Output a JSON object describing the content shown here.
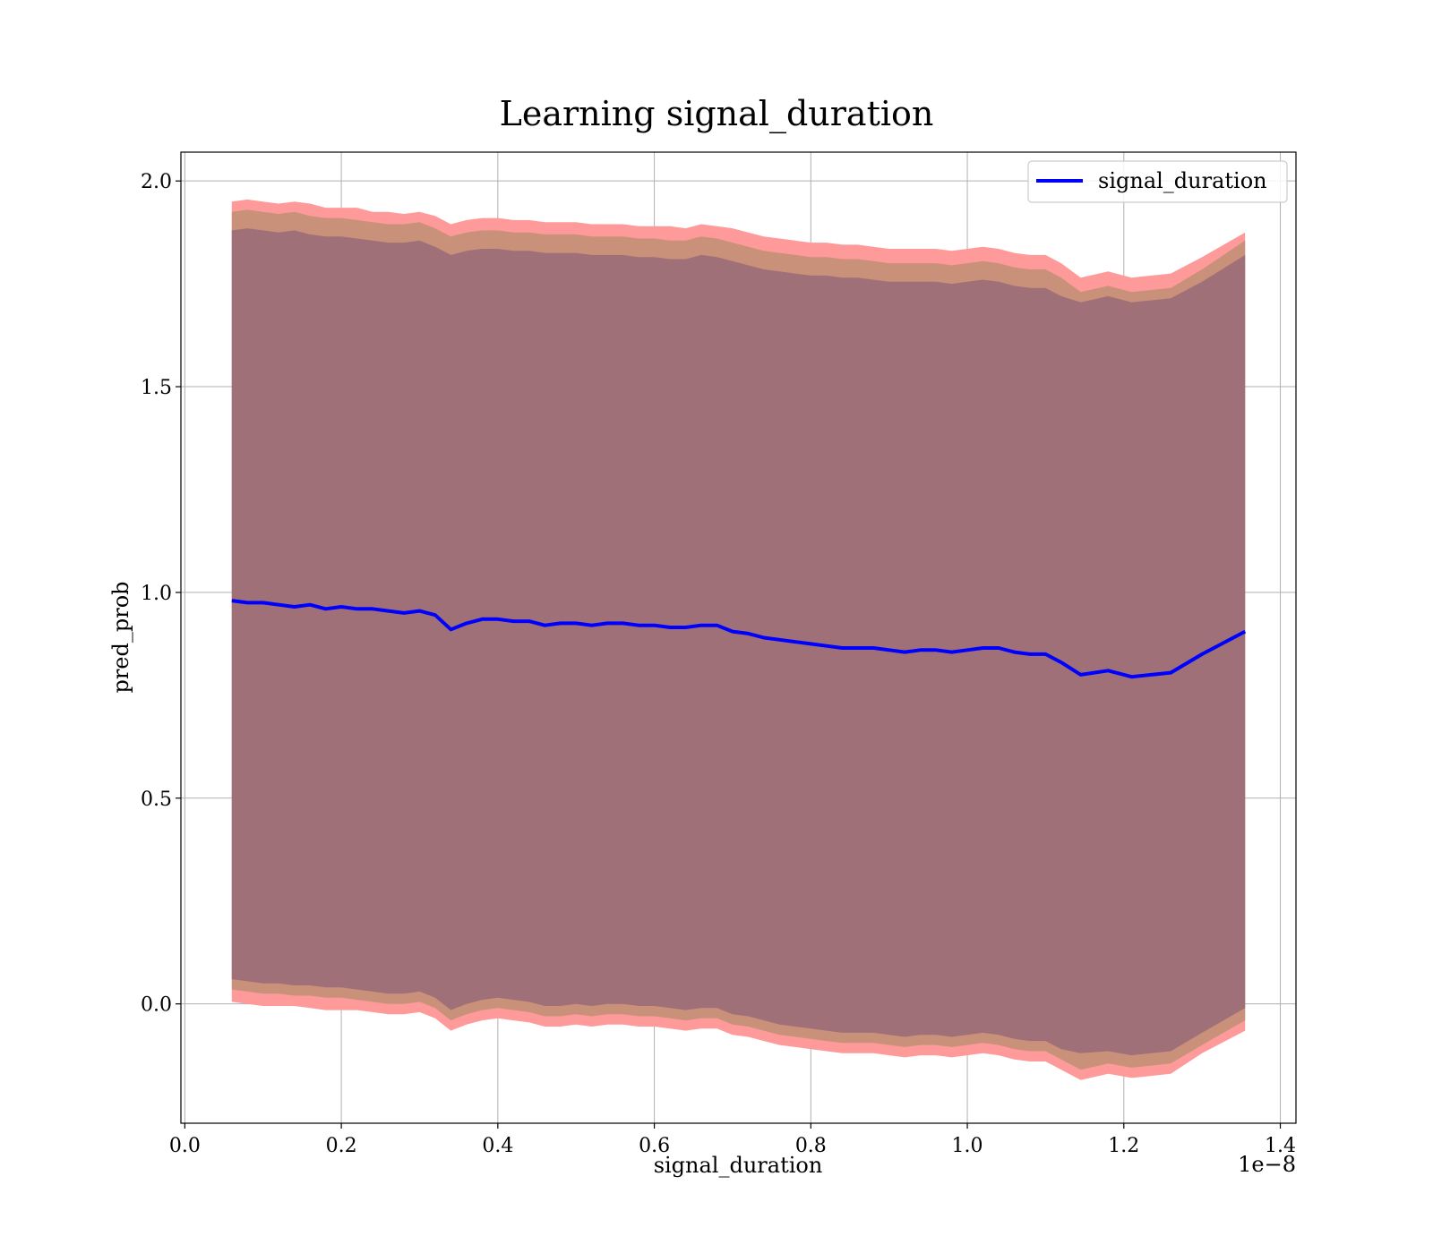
{
  "chart_data": {
    "type": "line",
    "title": "Learning signal_duration",
    "xlabel": "signal_duration",
    "ylabel": "pred_prob",
    "x_offset_label": "1e−8",
    "xlim": [
      -0.005,
      1.42
    ],
    "ylim": [
      -0.29,
      2.07
    ],
    "x_ticks": [
      0.0,
      0.2,
      0.4,
      0.6,
      0.8,
      1.0,
      1.2,
      1.4
    ],
    "x_tick_labels": [
      "0.0",
      "0.2",
      "0.4",
      "0.6",
      "0.8",
      "1.0",
      "1.2",
      "1.4"
    ],
    "y_ticks": [
      0.0,
      0.5,
      1.0,
      1.5,
      2.0
    ],
    "y_tick_labels": [
      "0.0",
      "0.5",
      "1.0",
      "1.5",
      "2.0"
    ],
    "grid": true,
    "legend_position": "top-right",
    "colors": {
      "line": "#0000ff",
      "band_outer": "#ff9a9a",
      "band_middle": "#c9917a",
      "band_inner": "#a07078",
      "grid": "#b0b0b0"
    },
    "series": [
      {
        "name": "signal_duration",
        "x": [
          0.06,
          0.08,
          0.1,
          0.12,
          0.14,
          0.16,
          0.18,
          0.2,
          0.22,
          0.24,
          0.26,
          0.28,
          0.3,
          0.32,
          0.34,
          0.36,
          0.38,
          0.4,
          0.42,
          0.44,
          0.46,
          0.48,
          0.5,
          0.52,
          0.54,
          0.56,
          0.58,
          0.6,
          0.62,
          0.64,
          0.66,
          0.68,
          0.7,
          0.72,
          0.74,
          0.76,
          0.78,
          0.8,
          0.82,
          0.84,
          0.86,
          0.88,
          0.9,
          0.92,
          0.94,
          0.96,
          0.98,
          1.0,
          1.02,
          1.04,
          1.06,
          1.08,
          1.1,
          1.12,
          1.145,
          1.18,
          1.21,
          1.26,
          1.3,
          1.355
        ],
        "y": [
          0.98,
          0.975,
          0.975,
          0.97,
          0.965,
          0.97,
          0.96,
          0.965,
          0.96,
          0.96,
          0.955,
          0.95,
          0.955,
          0.945,
          0.91,
          0.925,
          0.935,
          0.935,
          0.93,
          0.93,
          0.92,
          0.925,
          0.925,
          0.92,
          0.925,
          0.925,
          0.92,
          0.92,
          0.915,
          0.915,
          0.92,
          0.92,
          0.905,
          0.9,
          0.89,
          0.885,
          0.88,
          0.875,
          0.87,
          0.865,
          0.865,
          0.865,
          0.86,
          0.855,
          0.86,
          0.86,
          0.855,
          0.86,
          0.865,
          0.865,
          0.855,
          0.85,
          0.85,
          0.83,
          0.8,
          0.81,
          0.795,
          0.805,
          0.85,
          0.905
        ],
        "band_outer_upper": [
          1.95,
          1.955,
          1.95,
          1.945,
          1.95,
          1.945,
          1.935,
          1.935,
          1.935,
          1.925,
          1.925,
          1.92,
          1.925,
          1.915,
          1.895,
          1.905,
          1.91,
          1.91,
          1.905,
          1.905,
          1.9,
          1.9,
          1.9,
          1.895,
          1.895,
          1.895,
          1.89,
          1.89,
          1.89,
          1.885,
          1.895,
          1.89,
          1.885,
          1.875,
          1.865,
          1.86,
          1.855,
          1.85,
          1.85,
          1.845,
          1.845,
          1.84,
          1.835,
          1.835,
          1.835,
          1.835,
          1.83,
          1.835,
          1.84,
          1.835,
          1.825,
          1.82,
          1.82,
          1.8,
          1.765,
          1.78,
          1.765,
          1.775,
          1.815,
          1.875
        ],
        "band_outer_lower": [
          0.005,
          0.0,
          -0.005,
          -0.005,
          -0.005,
          -0.01,
          -0.015,
          -0.015,
          -0.015,
          -0.02,
          -0.025,
          -0.025,
          -0.02,
          -0.035,
          -0.065,
          -0.05,
          -0.04,
          -0.035,
          -0.04,
          -0.045,
          -0.055,
          -0.055,
          -0.05,
          -0.055,
          -0.05,
          -0.05,
          -0.055,
          -0.055,
          -0.06,
          -0.065,
          -0.06,
          -0.06,
          -0.075,
          -0.08,
          -0.09,
          -0.1,
          -0.105,
          -0.11,
          -0.115,
          -0.12,
          -0.12,
          -0.12,
          -0.125,
          -0.13,
          -0.125,
          -0.125,
          -0.13,
          -0.125,
          -0.12,
          -0.125,
          -0.135,
          -0.14,
          -0.14,
          -0.16,
          -0.185,
          -0.17,
          -0.18,
          -0.17,
          -0.12,
          -0.065
        ],
        "band_mid_upper": [
          1.925,
          1.93,
          1.925,
          1.92,
          1.925,
          1.915,
          1.91,
          1.91,
          1.905,
          1.9,
          1.895,
          1.895,
          1.9,
          1.885,
          1.865,
          1.875,
          1.88,
          1.88,
          1.875,
          1.875,
          1.87,
          1.87,
          1.87,
          1.865,
          1.865,
          1.865,
          1.86,
          1.86,
          1.855,
          1.855,
          1.865,
          1.86,
          1.85,
          1.84,
          1.83,
          1.825,
          1.82,
          1.815,
          1.815,
          1.81,
          1.81,
          1.805,
          1.8,
          1.8,
          1.8,
          1.8,
          1.795,
          1.8,
          1.805,
          1.8,
          1.79,
          1.785,
          1.785,
          1.765,
          1.73,
          1.745,
          1.73,
          1.74,
          1.785,
          1.855
        ],
        "band_mid_lower": [
          0.035,
          0.03,
          0.025,
          0.025,
          0.02,
          0.02,
          0.015,
          0.015,
          0.01,
          0.005,
          0.0,
          0.0,
          0.005,
          -0.01,
          -0.04,
          -0.025,
          -0.015,
          -0.01,
          -0.015,
          -0.02,
          -0.03,
          -0.03,
          -0.025,
          -0.03,
          -0.025,
          -0.025,
          -0.03,
          -0.03,
          -0.035,
          -0.04,
          -0.035,
          -0.035,
          -0.05,
          -0.055,
          -0.065,
          -0.075,
          -0.08,
          -0.085,
          -0.09,
          -0.095,
          -0.095,
          -0.095,
          -0.1,
          -0.105,
          -0.1,
          -0.1,
          -0.105,
          -0.1,
          -0.095,
          -0.1,
          -0.11,
          -0.115,
          -0.115,
          -0.135,
          -0.16,
          -0.145,
          -0.155,
          -0.145,
          -0.1,
          -0.04
        ],
        "band_inner_upper": [
          1.88,
          1.885,
          1.88,
          1.875,
          1.88,
          1.87,
          1.865,
          1.865,
          1.86,
          1.855,
          1.85,
          1.85,
          1.855,
          1.84,
          1.82,
          1.83,
          1.835,
          1.835,
          1.83,
          1.83,
          1.825,
          1.825,
          1.825,
          1.82,
          1.82,
          1.82,
          1.815,
          1.815,
          1.81,
          1.81,
          1.82,
          1.815,
          1.805,
          1.795,
          1.785,
          1.78,
          1.775,
          1.77,
          1.77,
          1.765,
          1.765,
          1.76,
          1.755,
          1.755,
          1.755,
          1.755,
          1.75,
          1.755,
          1.76,
          1.755,
          1.745,
          1.74,
          1.74,
          1.72,
          1.705,
          1.72,
          1.705,
          1.715,
          1.755,
          1.82
        ],
        "band_inner_lower": [
          0.06,
          0.055,
          0.05,
          0.05,
          0.045,
          0.045,
          0.04,
          0.04,
          0.035,
          0.03,
          0.025,
          0.025,
          0.03,
          0.015,
          -0.015,
          0.0,
          0.01,
          0.015,
          0.01,
          0.005,
          -0.005,
          -0.005,
          0.0,
          -0.005,
          0.0,
          0.0,
          -0.005,
          -0.005,
          -0.01,
          -0.015,
          -0.01,
          -0.01,
          -0.025,
          -0.03,
          -0.04,
          -0.05,
          -0.055,
          -0.06,
          -0.065,
          -0.07,
          -0.07,
          -0.07,
          -0.075,
          -0.08,
          -0.075,
          -0.075,
          -0.08,
          -0.075,
          -0.07,
          -0.075,
          -0.085,
          -0.09,
          -0.09,
          -0.11,
          -0.12,
          -0.115,
          -0.125,
          -0.115,
          -0.07,
          -0.01
        ]
      }
    ]
  }
}
